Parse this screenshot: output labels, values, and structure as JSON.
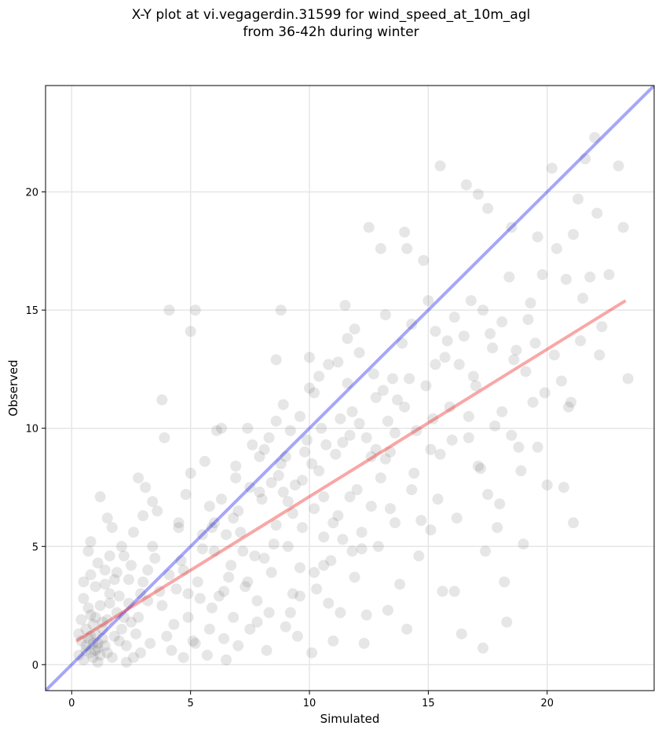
{
  "chart_data": {
    "type": "scatter",
    "title_lines": [
      "X-Y plot at vi.vegagerdin.31599 for wind_speed_at_10m_agl",
      "from 36-42h during winter"
    ],
    "xlabel": "Simulated",
    "ylabel": "Observed",
    "xlim": [
      -1.1,
      24.5
    ],
    "ylim": [
      -1.1,
      24.5
    ],
    "xticks": [
      0,
      5,
      10,
      15,
      20
    ],
    "yticks": [
      0,
      5,
      10,
      15,
      20
    ],
    "grid": true,
    "point_color": "#404040",
    "identity_line": {
      "color": "#0000ee",
      "x": [
        -1.1,
        24.5
      ],
      "y": [
        -1.1,
        24.5
      ]
    },
    "regression_line": {
      "color": "#ee2222",
      "x": [
        0.2,
        23.3
      ],
      "y": [
        1.0,
        15.4
      ]
    },
    "points": [
      [
        0.3,
        0.4
      ],
      [
        0.5,
        0.2
      ],
      [
        0.6,
        0.8
      ],
      [
        0.7,
        1.1
      ],
      [
        0.8,
        0.5
      ],
      [
        0.9,
        0.9
      ],
      [
        1.0,
        1.3
      ],
      [
        1.1,
        0.7
      ],
      [
        0.6,
        1.5
      ],
      [
        0.8,
        2.1
      ],
      [
        1.2,
        2.5
      ],
      [
        0.5,
        2.8
      ],
      [
        1.0,
        3.3
      ],
      [
        1.3,
        1.8
      ],
      [
        0.4,
        1.0
      ],
      [
        0.9,
        0.3
      ],
      [
        1.1,
        0.1
      ],
      [
        0.7,
        4.8
      ],
      [
        0.8,
        5.2
      ],
      [
        1.2,
        7.1
      ],
      [
        1.5,
        6.2
      ],
      [
        1.7,
        5.8
      ],
      [
        1.4,
        4.0
      ],
      [
        1.6,
        3.0
      ],
      [
        1.9,
        2.2
      ],
      [
        2.1,
        1.5
      ],
      [
        2.3,
        0.8
      ],
      [
        2.6,
        0.3
      ],
      [
        2.8,
        2.0
      ],
      [
        3.0,
        3.5
      ],
      [
        2.5,
        4.2
      ],
      [
        2.2,
        4.6
      ],
      [
        1.8,
        3.6
      ],
      [
        2.0,
        1.0
      ],
      [
        1.5,
        0.5
      ],
      [
        1.3,
        1.1
      ],
      [
        0.9,
        1.7
      ],
      [
        3.2,
        2.7
      ],
      [
        3.4,
        5.0
      ],
      [
        3.6,
        6.5
      ],
      [
        2.8,
        7.9
      ],
      [
        3.1,
        7.5
      ],
      [
        3.5,
        4.5
      ],
      [
        3.8,
        2.5
      ],
      [
        4.0,
        1.2
      ],
      [
        4.2,
        0.6
      ],
      [
        4.4,
        3.2
      ],
      [
        3.8,
        11.2
      ],
      [
        3.9,
        9.6
      ],
      [
        4.1,
        15.0
      ],
      [
        4.5,
        6.0
      ],
      [
        4.7,
        4.0
      ],
      [
        4.9,
        2.0
      ],
      [
        5.1,
        1.0
      ],
      [
        5.3,
        3.5
      ],
      [
        5.5,
        5.5
      ],
      [
        4.8,
        7.2
      ],
      [
        5.0,
        8.1
      ],
      [
        5.2,
        15.0
      ],
      [
        5.0,
        14.1
      ],
      [
        5.6,
        8.6
      ],
      [
        5.8,
        6.7
      ],
      [
        6.0,
        4.8
      ],
      [
        6.2,
        2.9
      ],
      [
        6.4,
        1.1
      ],
      [
        6.6,
        3.7
      ],
      [
        6.8,
        6.2
      ],
      [
        6.1,
        9.9
      ],
      [
        6.3,
        10.0
      ],
      [
        6.9,
        8.4
      ],
      [
        7.1,
        5.6
      ],
      [
        7.3,
        3.3
      ],
      [
        7.5,
        1.5
      ],
      [
        7.7,
        4.6
      ],
      [
        7.9,
        7.3
      ],
      [
        8.1,
        9.1
      ],
      [
        7.4,
        10.0
      ],
      [
        8.3,
        2.2
      ],
      [
        8.5,
        5.1
      ],
      [
        8.7,
        8.0
      ],
      [
        8.8,
        15.0
      ],
      [
        8.6,
        12.9
      ],
      [
        8.9,
        11.0
      ],
      [
        9.1,
        6.9
      ],
      [
        9.3,
        3.0
      ],
      [
        9.5,
        1.2
      ],
      [
        9.7,
        7.8
      ],
      [
        9.9,
        9.5
      ],
      [
        10.0,
        13.0
      ],
      [
        10.2,
        11.5
      ],
      [
        10.4,
        8.2
      ],
      [
        10.6,
        5.4
      ],
      [
        10.8,
        2.6
      ],
      [
        11.0,
        1.0
      ],
      [
        11.2,
        6.3
      ],
      [
        11.4,
        9.4
      ],
      [
        11.6,
        13.8
      ],
      [
        11.5,
        15.2
      ],
      [
        11.8,
        10.7
      ],
      [
        12.0,
        7.4
      ],
      [
        12.2,
        4.9
      ],
      [
        12.4,
        2.1
      ],
      [
        12.6,
        8.8
      ],
      [
        12.8,
        11.3
      ],
      [
        13.0,
        17.6
      ],
      [
        12.5,
        18.5
      ],
      [
        13.2,
        14.8
      ],
      [
        13.4,
        9.0
      ],
      [
        13.6,
        6.0
      ],
      [
        13.8,
        3.4
      ],
      [
        14.0,
        18.3
      ],
      [
        14.1,
        17.6
      ],
      [
        14.2,
        12.1
      ],
      [
        14.4,
        8.1
      ],
      [
        14.6,
        4.6
      ],
      [
        14.8,
        17.1
      ],
      [
        15.0,
        15.4
      ],
      [
        15.2,
        10.4
      ],
      [
        15.4,
        7.0
      ],
      [
        15.6,
        3.1
      ],
      [
        15.5,
        21.1
      ],
      [
        15.8,
        13.7
      ],
      [
        16.0,
        9.5
      ],
      [
        16.2,
        6.2
      ],
      [
        16.4,
        1.3
      ],
      [
        16.6,
        20.3
      ],
      [
        16.8,
        15.4
      ],
      [
        17.0,
        11.8
      ],
      [
        17.2,
        8.3
      ],
      [
        17.4,
        4.8
      ],
      [
        17.1,
        19.9
      ],
      [
        17.6,
        14.0
      ],
      [
        17.8,
        10.1
      ],
      [
        18.0,
        6.8
      ],
      [
        18.2,
        3.5
      ],
      [
        17.5,
        19.3
      ],
      [
        18.4,
        16.4
      ],
      [
        18.6,
        12.9
      ],
      [
        18.8,
        9.2
      ],
      [
        18.5,
        18.5
      ],
      [
        19.0,
        5.1
      ],
      [
        19.2,
        14.6
      ],
      [
        19.4,
        11.1
      ],
      [
        19.6,
        18.1
      ],
      [
        19.8,
        16.5
      ],
      [
        20.0,
        7.6
      ],
      [
        20.2,
        21.0
      ],
      [
        20.4,
        17.6
      ],
      [
        20.6,
        12.0
      ],
      [
        20.8,
        16.3
      ],
      [
        21.0,
        11.1
      ],
      [
        21.1,
        18.2
      ],
      [
        21.3,
        19.7
      ],
      [
        21.5,
        15.5
      ],
      [
        21.6,
        21.4
      ],
      [
        21.8,
        16.4
      ],
      [
        22.0,
        22.3
      ],
      [
        22.1,
        19.1
      ],
      [
        22.3,
        14.3
      ],
      [
        22.6,
        16.5
      ],
      [
        23.0,
        21.1
      ],
      [
        23.2,
        18.5
      ],
      [
        23.4,
        12.1
      ],
      [
        21.1,
        6.0
      ],
      [
        20.7,
        7.5
      ],
      [
        17.3,
        0.7
      ],
      [
        18.3,
        1.8
      ],
      [
        19.6,
        9.2
      ],
      [
        14.1,
        1.5
      ],
      [
        16.1,
        3.1
      ],
      [
        9.2,
        2.2
      ],
      [
        9.6,
        4.1
      ],
      [
        10.1,
        0.5
      ],
      [
        10.3,
        3.2
      ],
      [
        10.9,
        4.4
      ],
      [
        11.3,
        2.2
      ],
      [
        11.9,
        3.7
      ],
      [
        12.3,
        0.9
      ],
      [
        12.9,
        5.0
      ],
      [
        13.3,
        2.3
      ],
      [
        6.5,
        0.2
      ],
      [
        7.0,
        0.8
      ],
      [
        7.8,
        1.8
      ],
      [
        8.2,
        0.6
      ],
      [
        8.4,
        3.9
      ],
      [
        5.7,
        0.4
      ],
      [
        5.9,
        2.4
      ],
      [
        4.3,
        1.7
      ],
      [
        3.3,
        0.9
      ],
      [
        2.7,
        1.3
      ],
      [
        9.0,
        8.8
      ],
      [
        9.4,
        7.6
      ],
      [
        9.8,
        9.0
      ],
      [
        10.1,
        8.5
      ],
      [
        10.5,
        10.0
      ],
      [
        10.7,
        9.3
      ],
      [
        11.1,
        8.9
      ],
      [
        11.3,
        10.4
      ],
      [
        11.7,
        9.7
      ],
      [
        12.1,
        10.2
      ],
      [
        8.0,
        7.0
      ],
      [
        8.4,
        7.7
      ],
      [
        8.8,
        8.5
      ],
      [
        9.2,
        9.9
      ],
      [
        9.6,
        10.5
      ],
      [
        10.0,
        11.7
      ],
      [
        10.4,
        12.2
      ],
      [
        10.8,
        12.7
      ],
      [
        11.2,
        12.8
      ],
      [
        11.6,
        11.9
      ],
      [
        12.4,
        9.6
      ],
      [
        12.8,
        9.1
      ],
      [
        13.2,
        8.7
      ],
      [
        13.6,
        9.8
      ],
      [
        14.0,
        10.9
      ],
      [
        13.1,
        11.6
      ],
      [
        12.7,
        12.3
      ],
      [
        12.1,
        13.2
      ],
      [
        11.9,
        14.2
      ],
      [
        11.7,
        7.1
      ],
      [
        6.0,
        6.0
      ],
      [
        6.5,
        5.5
      ],
      [
        7.0,
        6.5
      ],
      [
        7.5,
        7.5
      ],
      [
        7.2,
        4.8
      ],
      [
        6.7,
        4.2
      ],
      [
        5.5,
        4.9
      ],
      [
        5.9,
        5.8
      ],
      [
        6.3,
        7.0
      ],
      [
        6.9,
        7.9
      ],
      [
        4.6,
        4.4
      ],
      [
        4.9,
        3.0
      ],
      [
        5.4,
        2.8
      ],
      [
        4.5,
        5.8
      ],
      [
        4.1,
        3.8
      ],
      [
        3.7,
        3.1
      ],
      [
        3.2,
        4.0
      ],
      [
        2.9,
        3.0
      ],
      [
        2.4,
        2.6
      ],
      [
        2.0,
        2.9
      ],
      [
        1.0,
        0.6
      ],
      [
        1.1,
        0.9
      ],
      [
        1.2,
        0.4
      ],
      [
        0.8,
        1.2
      ],
      [
        0.6,
        0.6
      ],
      [
        1.4,
        0.8
      ],
      [
        1.3,
        1.5
      ],
      [
        0.7,
        2.4
      ],
      [
        1.0,
        2.0
      ],
      [
        1.5,
        1.9
      ],
      [
        1.8,
        1.2
      ],
      [
        2.2,
        2.0
      ],
      [
        2.5,
        1.8
      ],
      [
        1.6,
        2.6
      ],
      [
        0.5,
        3.5
      ],
      [
        0.4,
        1.9
      ],
      [
        0.3,
        1.3
      ],
      [
        1.7,
        0.3
      ],
      [
        2.3,
        0.1
      ],
      [
        2.9,
        0.5
      ],
      [
        14.3,
        7.4
      ],
      [
        14.7,
        6.1
      ],
      [
        15.1,
        5.7
      ],
      [
        15.5,
        8.9
      ],
      [
        15.9,
        10.9
      ],
      [
        16.3,
        12.7
      ],
      [
        16.7,
        9.6
      ],
      [
        17.1,
        8.4
      ],
      [
        17.5,
        7.2
      ],
      [
        17.9,
        5.8
      ],
      [
        18.1,
        10.7
      ],
      [
        18.5,
        9.7
      ],
      [
        18.9,
        8.2
      ],
      [
        19.1,
        12.4
      ],
      [
        19.5,
        13.6
      ],
      [
        19.9,
        11.5
      ],
      [
        20.3,
        13.1
      ],
      [
        20.9,
        10.9
      ],
      [
        21.4,
        13.7
      ],
      [
        22.2,
        13.1
      ],
      [
        15.3,
        14.1
      ],
      [
        15.7,
        13.0
      ],
      [
        16.1,
        14.7
      ],
      [
        16.5,
        13.9
      ],
      [
        16.9,
        12.2
      ],
      [
        17.3,
        15.0
      ],
      [
        17.7,
        13.4
      ],
      [
        18.1,
        14.5
      ],
      [
        18.7,
        13.3
      ],
      [
        19.3,
        15.3
      ],
      [
        13.5,
        12.1
      ],
      [
        13.9,
        13.6
      ],
      [
        14.3,
        14.4
      ],
      [
        14.9,
        11.8
      ],
      [
        15.3,
        12.7
      ],
      [
        13.7,
        11.2
      ],
      [
        13.3,
        10.3
      ],
      [
        14.5,
        9.9
      ],
      [
        15.1,
        9.1
      ],
      [
        16.7,
        10.5
      ],
      [
        7.6,
        9.3
      ],
      [
        7.9,
        8.8
      ],
      [
        8.3,
        9.6
      ],
      [
        8.6,
        10.3
      ],
      [
        8.9,
        7.3
      ],
      [
        9.3,
        6.4
      ],
      [
        9.7,
        5.8
      ],
      [
        10.2,
        6.6
      ],
      [
        10.6,
        7.1
      ],
      [
        11.0,
        6.0
      ],
      [
        8.1,
        4.5
      ],
      [
        8.6,
        5.9
      ],
      [
        9.1,
        5.0
      ],
      [
        7.4,
        3.5
      ],
      [
        7.8,
        2.7
      ],
      [
        6.8,
        2.0
      ],
      [
        6.4,
        3.1
      ],
      [
        5.8,
        1.5
      ],
      [
        5.2,
        0.9
      ],
      [
        4.7,
        0.3
      ],
      [
        12.6,
        6.7
      ],
      [
        13.0,
        7.9
      ],
      [
        13.4,
        6.6
      ],
      [
        12.2,
        5.6
      ],
      [
        11.8,
        4.8
      ],
      [
        11.4,
        5.3
      ],
      [
        10.6,
        4.2
      ],
      [
        10.2,
        3.9
      ],
      [
        9.6,
        2.9
      ],
      [
        9.0,
        1.6
      ],
      [
        3.0,
        6.3
      ],
      [
        2.6,
        5.6
      ],
      [
        2.1,
        5.0
      ],
      [
        1.6,
        4.6
      ],
      [
        1.1,
        4.3
      ],
      [
        0.8,
        3.8
      ],
      [
        1.4,
        3.4
      ],
      [
        1.9,
        3.9
      ],
      [
        2.4,
        3.6
      ],
      [
        3.4,
        6.9
      ]
    ]
  }
}
